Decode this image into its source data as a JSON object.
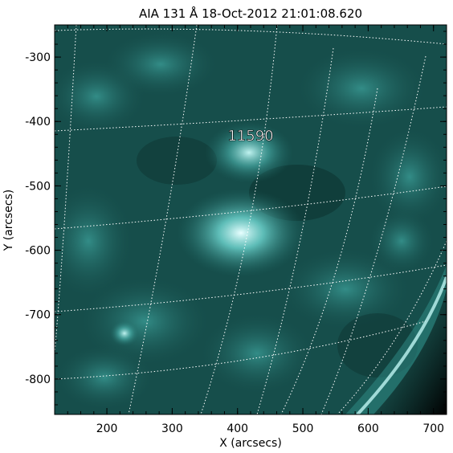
{
  "title": "AIA 131 Å 18-Oct-2012 21:01:08.620",
  "annotation": "11590",
  "xaxis": {
    "label": "X (arcsecs)",
    "range": [
      120,
      720
    ],
    "ticks": [
      "200",
      "300",
      "400",
      "500",
      "600",
      "700"
    ]
  },
  "yaxis": {
    "label": "Y (arcsecs)",
    "range": [
      -855,
      -250
    ],
    "ticks": [
      "-300",
      "-400",
      "-500",
      "-600",
      "-700",
      "-800"
    ]
  },
  "colors": {
    "image_base": "#0f3d3a",
    "image_bright": "#e6ffff",
    "grid": "#ffffff",
    "axis": "#000000"
  }
}
